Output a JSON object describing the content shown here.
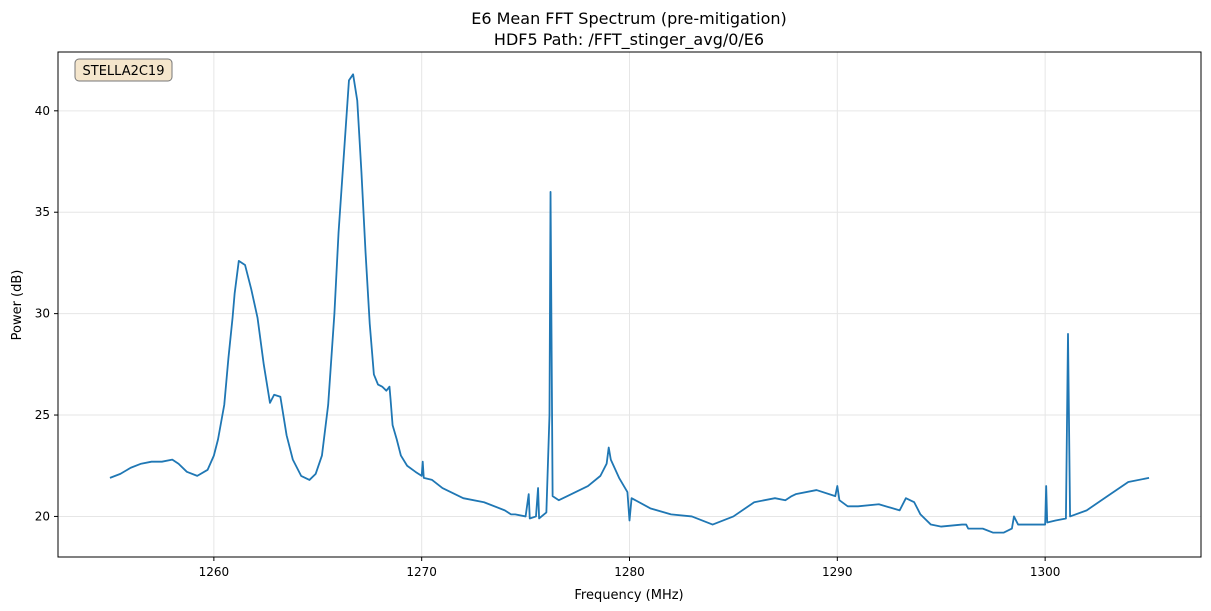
{
  "chart_data": {
    "type": "line",
    "title": "E6 Mean FFT Spectrum (pre-mitigation)",
    "subtitle": "HDF5 Path: /FFT_stinger_avg/0/E6",
    "xlabel": "Frequency (MHz)",
    "ylabel": "Power (dB)",
    "xlim": [
      1252.5,
      1307.5
    ],
    "ylim": [
      18.0,
      42.9
    ],
    "xticks": [
      1260,
      1270,
      1280,
      1290,
      1300
    ],
    "yticks": [
      20,
      25,
      30,
      35,
      40
    ],
    "grid": true,
    "annotation": "STELLA2C19",
    "series": [
      {
        "color": "#1f77b4",
        "points": [
          [
            1255.0,
            21.9
          ],
          [
            1255.5,
            22.1
          ],
          [
            1256.0,
            22.4
          ],
          [
            1256.5,
            22.6
          ],
          [
            1257.0,
            22.7
          ],
          [
            1257.5,
            22.7
          ],
          [
            1258.0,
            22.8
          ],
          [
            1258.3,
            22.6
          ],
          [
            1258.7,
            22.2
          ],
          [
            1259.2,
            22.0
          ],
          [
            1259.7,
            22.3
          ],
          [
            1260.0,
            23.0
          ],
          [
            1260.2,
            23.8
          ],
          [
            1260.5,
            25.5
          ],
          [
            1260.7,
            27.8
          ],
          [
            1260.9,
            29.8
          ],
          [
            1261.0,
            31.0
          ],
          [
            1261.2,
            32.6
          ],
          [
            1261.5,
            32.4
          ],
          [
            1261.8,
            31.2
          ],
          [
            1262.1,
            29.8
          ],
          [
            1262.4,
            27.5
          ],
          [
            1262.7,
            25.6
          ],
          [
            1262.9,
            26.0
          ],
          [
            1263.2,
            25.9
          ],
          [
            1263.5,
            24.0
          ],
          [
            1263.8,
            22.8
          ],
          [
            1264.2,
            22.0
          ],
          [
            1264.6,
            21.8
          ],
          [
            1264.9,
            22.1
          ],
          [
            1265.2,
            23.0
          ],
          [
            1265.5,
            25.5
          ],
          [
            1265.8,
            30.0
          ],
          [
            1266.0,
            34.0
          ],
          [
            1266.3,
            38.5
          ],
          [
            1266.5,
            41.5
          ],
          [
            1266.7,
            41.8
          ],
          [
            1266.9,
            40.5
          ],
          [
            1267.1,
            37.0
          ],
          [
            1267.3,
            33.0
          ],
          [
            1267.5,
            29.5
          ],
          [
            1267.7,
            27.0
          ],
          [
            1267.9,
            26.5
          ],
          [
            1268.1,
            26.4
          ],
          [
            1268.3,
            26.2
          ],
          [
            1268.45,
            26.4
          ],
          [
            1268.5,
            25.8
          ],
          [
            1268.6,
            24.5
          ],
          [
            1268.8,
            23.8
          ],
          [
            1269.0,
            23.0
          ],
          [
            1269.3,
            22.5
          ],
          [
            1269.7,
            22.2
          ],
          [
            1270.0,
            22.0
          ],
          [
            1270.05,
            22.7
          ],
          [
            1270.1,
            21.9
          ],
          [
            1270.5,
            21.8
          ],
          [
            1271.0,
            21.4
          ],
          [
            1272.0,
            20.9
          ],
          [
            1273.0,
            20.7
          ],
          [
            1274.0,
            20.3
          ],
          [
            1274.3,
            20.1
          ],
          [
            1274.5,
            20.1
          ],
          [
            1275.0,
            20.0
          ],
          [
            1275.15,
            21.1
          ],
          [
            1275.2,
            19.9
          ],
          [
            1275.5,
            20.0
          ],
          [
            1275.6,
            21.4
          ],
          [
            1275.65,
            19.9
          ],
          [
            1276.0,
            20.2
          ],
          [
            1276.15,
            25.0
          ],
          [
            1276.2,
            36.0
          ],
          [
            1276.3,
            21.0
          ],
          [
            1276.6,
            20.8
          ],
          [
            1277.0,
            21.0
          ],
          [
            1278.0,
            21.5
          ],
          [
            1278.6,
            22.0
          ],
          [
            1278.9,
            22.6
          ],
          [
            1279.0,
            23.4
          ],
          [
            1279.1,
            22.8
          ],
          [
            1279.5,
            21.9
          ],
          [
            1279.9,
            21.2
          ],
          [
            1280.0,
            19.8
          ],
          [
            1280.1,
            20.9
          ],
          [
            1281.0,
            20.4
          ],
          [
            1282.0,
            20.1
          ],
          [
            1283.0,
            20.0
          ],
          [
            1284.0,
            19.6
          ],
          [
            1285.0,
            20.0
          ],
          [
            1286.0,
            20.7
          ],
          [
            1287.0,
            20.9
          ],
          [
            1287.5,
            20.8
          ],
          [
            1287.8,
            21.0
          ],
          [
            1288.0,
            21.1
          ],
          [
            1289.0,
            21.3
          ],
          [
            1289.9,
            21.0
          ],
          [
            1290.0,
            21.5
          ],
          [
            1290.1,
            20.8
          ],
          [
            1290.5,
            20.5
          ],
          [
            1291.0,
            20.5
          ],
          [
            1292.0,
            20.6
          ],
          [
            1293.0,
            20.3
          ],
          [
            1293.3,
            20.9
          ],
          [
            1293.7,
            20.7
          ],
          [
            1294.0,
            20.1
          ],
          [
            1294.5,
            19.6
          ],
          [
            1295.0,
            19.5
          ],
          [
            1296.0,
            19.6
          ],
          [
            1296.2,
            19.6
          ],
          [
            1296.3,
            19.4
          ],
          [
            1297.0,
            19.4
          ],
          [
            1297.5,
            19.2
          ],
          [
            1298.0,
            19.2
          ],
          [
            1298.4,
            19.4
          ],
          [
            1298.5,
            20.0
          ],
          [
            1298.7,
            19.6
          ],
          [
            1299.5,
            19.6
          ],
          [
            1300.0,
            19.6
          ],
          [
            1300.05,
            21.5
          ],
          [
            1300.1,
            19.7
          ],
          [
            1300.5,
            19.8
          ],
          [
            1301.0,
            19.9
          ],
          [
            1301.1,
            29.0
          ],
          [
            1301.2,
            20.0
          ],
          [
            1302.0,
            20.3
          ],
          [
            1303.0,
            21.0
          ],
          [
            1304.0,
            21.7
          ],
          [
            1305.0,
            21.9
          ]
        ]
      }
    ]
  }
}
